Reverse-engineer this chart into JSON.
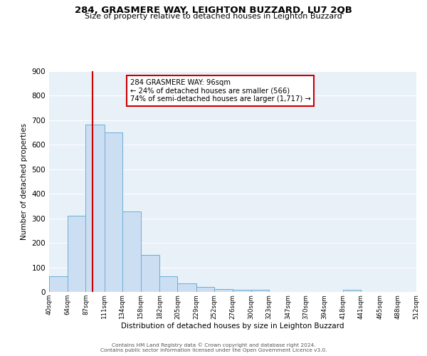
{
  "title": "284, GRASMERE WAY, LEIGHTON BUZZARD, LU7 2QB",
  "subtitle": "Size of property relative to detached houses in Leighton Buzzard",
  "xlabel": "Distribution of detached houses by size in Leighton Buzzard",
  "ylabel": "Number of detached properties",
  "bin_edges": [
    40,
    64,
    87,
    111,
    134,
    158,
    182,
    205,
    229,
    252,
    276,
    300,
    323,
    347,
    370,
    394,
    418,
    441,
    465,
    488,
    512
  ],
  "bin_heights": [
    65,
    310,
    683,
    650,
    328,
    152,
    65,
    35,
    20,
    12,
    8,
    8,
    0,
    0,
    0,
    0,
    8,
    0,
    0,
    0
  ],
  "bar_color": "#ccdff2",
  "bar_edge_color": "#6aaed6",
  "vline_x": 96,
  "vline_color": "#cc0000",
  "annotation_text": "284 GRASMERE WAY: 96sqm\n← 24% of detached houses are smaller (566)\n74% of semi-detached houses are larger (1,717) →",
  "annotation_box_color": "#ffffff",
  "annotation_box_edge": "#cc0000",
  "ylim": [
    0,
    900
  ],
  "yticks": [
    0,
    100,
    200,
    300,
    400,
    500,
    600,
    700,
    800,
    900
  ],
  "xtick_labels": [
    "40sqm",
    "64sqm",
    "87sqm",
    "111sqm",
    "134sqm",
    "158sqm",
    "182sqm",
    "205sqm",
    "229sqm",
    "252sqm",
    "276sqm",
    "300sqm",
    "323sqm",
    "347sqm",
    "370sqm",
    "394sqm",
    "418sqm",
    "441sqm",
    "465sqm",
    "488sqm",
    "512sqm"
  ],
  "footer_line1": "Contains HM Land Registry data © Crown copyright and database right 2024.",
  "footer_line2": "Contains public sector information licensed under the Open Government Licence v3.0.",
  "bg_color": "#e8f0f8",
  "grid_color": "#ffffff",
  "fig_bg_color": "#ffffff"
}
